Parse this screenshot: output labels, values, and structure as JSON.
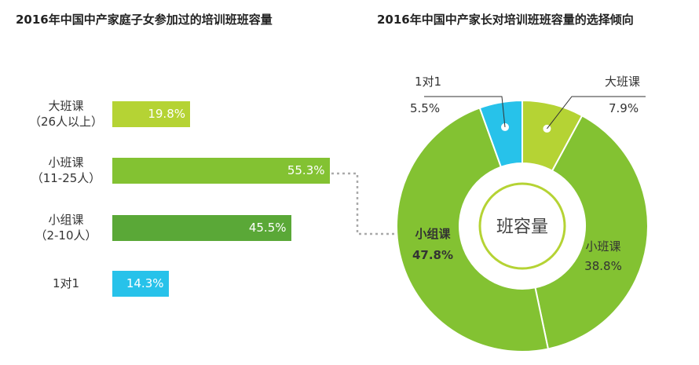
{
  "left_title": "2016年中国中产家庭子女参加过的培训班班容量",
  "right_title": "2016年中国中产家长对培训班班容量的选择倾向",
  "center_label": "班容量",
  "colors": {
    "light_green": "#b5d334",
    "mid_green": "#83c232",
    "dark_green": "#5aa837",
    "cyan": "#27c2ea"
  },
  "chart_data": [
    {
      "type": "bar",
      "orientation": "horizontal",
      "title": "2016年中国中产家庭子女参加过的培训班班容量",
      "categories": [
        {
          "line1": "大班课",
          "line2": "（26人以上）"
        },
        {
          "line1": "小班课",
          "line2": "（11-25人）"
        },
        {
          "line1": "小组课",
          "line2": "（2-10人）"
        },
        {
          "line1": "1对1",
          "line2": ""
        }
      ],
      "values": [
        19.8,
        55.3,
        45.5,
        14.3
      ],
      "value_labels": [
        "19.8%",
        "55.3%",
        "45.5%",
        "14.3%"
      ],
      "unit": "%",
      "colors": [
        "#b5d334",
        "#83c232",
        "#5aa837",
        "#27c2ea"
      ]
    },
    {
      "type": "pie",
      "subtype": "donut",
      "title": "2016年中国中产家长对培训班班容量的选择倾向",
      "slices": [
        {
          "label": "1对1",
          "value": 5.5,
          "value_label": "5.5%",
          "color": "#27c2ea"
        },
        {
          "label": "大班课",
          "value": 7.9,
          "value_label": "7.9%",
          "color": "#b5d334"
        },
        {
          "label": "小班课",
          "value": 38.8,
          "value_label": "38.8%",
          "color": "#83c232"
        },
        {
          "label": "小组课",
          "value": 47.8,
          "value_label": "47.8%",
          "color": "#83c232"
        }
      ]
    }
  ]
}
